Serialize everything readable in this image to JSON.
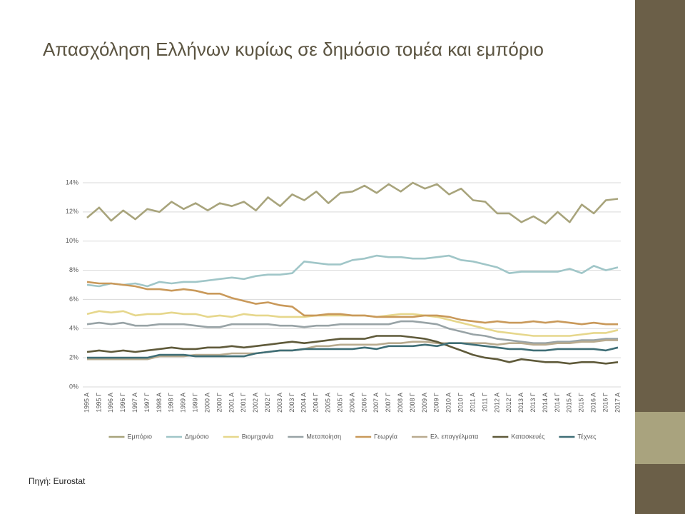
{
  "chart_data": {
    "type": "line",
    "title": "Απασχόληση Ελλήνων κυρίως σε δημόσιο τομέα και εμπόριο",
    "source": "Πηγή: Eurostat",
    "categories": [
      "1995 Α",
      "1995 Γ",
      "1996 Α",
      "1996 Γ",
      "1997 Α",
      "1997 Γ",
      "1998 Α",
      "1998 Γ",
      "1999 Α",
      "1999 Γ",
      "2000 Α",
      "2000 Γ",
      "2001 Α",
      "2001 Γ",
      "2002 Α",
      "2002 Γ",
      "2003 Α",
      "2003 Γ",
      "2004 Α",
      "2004 Γ",
      "2005 Α",
      "2005 Γ",
      "2006 Α",
      "2006 Γ",
      "2007 Α",
      "2007 Γ",
      "2008 Α",
      "2008 Γ",
      "2009 Α",
      "2009 Γ",
      "2010 Α",
      "2010 Γ",
      "2011 Α",
      "2011 Γ",
      "2012 Α",
      "2012 Γ",
      "2013 Α",
      "2013 Γ",
      "2014 Α",
      "2014 Γ",
      "2015 Α",
      "2015 Γ",
      "2016 Α",
      "2016 Γ",
      "2017 Α"
    ],
    "series": [
      {
        "name": "Εμπόριο",
        "color": "#a8a47c",
        "values": [
          11.6,
          12.3,
          11.4,
          12.1,
          11.5,
          12.2,
          12.0,
          12.7,
          12.2,
          12.6,
          12.1,
          12.6,
          12.4,
          12.7,
          12.1,
          13.0,
          12.4,
          13.2,
          12.8,
          13.4,
          12.6,
          13.3,
          13.4,
          13.8,
          13.3,
          13.9,
          13.4,
          14.0,
          13.6,
          13.9,
          13.2,
          13.6,
          12.8,
          12.7,
          11.9,
          11.9,
          11.3,
          11.7,
          11.2,
          12.0,
          11.3,
          12.5,
          11.9,
          12.8,
          12.9
        ]
      },
      {
        "name": "Δημόσιο",
        "color": "#a0c6c8",
        "values": [
          7.0,
          6.9,
          7.1,
          7.0,
          7.1,
          6.9,
          7.2,
          7.1,
          7.2,
          7.2,
          7.3,
          7.4,
          7.5,
          7.4,
          7.6,
          7.7,
          7.7,
          7.8,
          8.6,
          8.5,
          8.4,
          8.4,
          8.7,
          8.8,
          9.0,
          8.9,
          8.9,
          8.8,
          8.8,
          8.9,
          9.0,
          8.7,
          8.6,
          8.4,
          8.2,
          7.8,
          7.9,
          7.9,
          7.9,
          7.9,
          8.1,
          7.8,
          8.3,
          8.0,
          8.2
        ]
      },
      {
        "name": "Βιομηχανία",
        "color": "#e6d78c",
        "values": [
          5.0,
          5.2,
          5.1,
          5.2,
          4.9,
          5.0,
          5.0,
          5.1,
          5.0,
          5.0,
          4.8,
          4.9,
          4.8,
          5.0,
          4.9,
          4.9,
          4.8,
          4.8,
          4.8,
          4.9,
          4.9,
          4.9,
          4.9,
          4.9,
          4.8,
          4.9,
          5.0,
          5.0,
          4.9,
          4.8,
          4.6,
          4.4,
          4.2,
          4.0,
          3.8,
          3.7,
          3.6,
          3.5,
          3.5,
          3.5,
          3.5,
          3.6,
          3.7,
          3.7,
          3.9
        ]
      },
      {
        "name": "Μεταποίηση",
        "color": "#98a3a6",
        "values": [
          4.3,
          4.4,
          4.3,
          4.4,
          4.2,
          4.2,
          4.3,
          4.3,
          4.3,
          4.2,
          4.1,
          4.1,
          4.3,
          4.3,
          4.3,
          4.3,
          4.2,
          4.2,
          4.1,
          4.2,
          4.2,
          4.3,
          4.3,
          4.3,
          4.3,
          4.3,
          4.5,
          4.5,
          4.4,
          4.3,
          4.0,
          3.8,
          3.6,
          3.5,
          3.3,
          3.2,
          3.1,
          3.0,
          3.0,
          3.1,
          3.1,
          3.2,
          3.2,
          3.3,
          3.3
        ]
      },
      {
        "name": "Γεωργία",
        "color": "#c9995a",
        "values": [
          7.2,
          7.1,
          7.1,
          7.0,
          6.9,
          6.7,
          6.7,
          6.6,
          6.7,
          6.6,
          6.4,
          6.4,
          6.1,
          5.9,
          5.7,
          5.8,
          5.6,
          5.5,
          4.9,
          4.9,
          5.0,
          5.0,
          4.9,
          4.9,
          4.8,
          4.8,
          4.8,
          4.8,
          4.9,
          4.9,
          4.8,
          4.6,
          4.5,
          4.4,
          4.5,
          4.4,
          4.4,
          4.5,
          4.4,
          4.5,
          4.4,
          4.3,
          4.4,
          4.3,
          4.3
        ]
      },
      {
        "name": "Ελ. επαγγέλματα",
        "color": "#b9ab8f",
        "values": [
          1.9,
          1.9,
          1.9,
          1.9,
          1.9,
          1.9,
          2.1,
          2.1,
          2.1,
          2.2,
          2.2,
          2.2,
          2.3,
          2.3,
          2.3,
          2.4,
          2.5,
          2.5,
          2.6,
          2.8,
          2.8,
          2.9,
          2.9,
          2.9,
          2.9,
          3.0,
          3.0,
          3.1,
          3.1,
          3.0,
          3.0,
          3.0,
          3.0,
          3.0,
          2.9,
          3.0,
          3.0,
          2.9,
          2.9,
          3.0,
          3.0,
          3.1,
          3.1,
          3.2,
          3.2
        ]
      },
      {
        "name": "Κατασκευές",
        "color": "#5f5a3a",
        "values": [
          2.4,
          2.5,
          2.4,
          2.5,
          2.4,
          2.5,
          2.6,
          2.7,
          2.6,
          2.6,
          2.7,
          2.7,
          2.8,
          2.7,
          2.8,
          2.9,
          3.0,
          3.1,
          3.0,
          3.1,
          3.2,
          3.3,
          3.3,
          3.3,
          3.5,
          3.5,
          3.5,
          3.4,
          3.3,
          3.1,
          2.8,
          2.5,
          2.2,
          2.0,
          1.9,
          1.7,
          1.9,
          1.8,
          1.7,
          1.7,
          1.6,
          1.7,
          1.7,
          1.6,
          1.7
        ]
      },
      {
        "name": "Τέχνες",
        "color": "#3f6e76",
        "values": [
          2.0,
          2.0,
          2.0,
          2.0,
          2.0,
          2.0,
          2.2,
          2.2,
          2.2,
          2.1,
          2.1,
          2.1,
          2.1,
          2.1,
          2.3,
          2.4,
          2.5,
          2.5,
          2.6,
          2.6,
          2.6,
          2.6,
          2.6,
          2.7,
          2.6,
          2.8,
          2.8,
          2.8,
          2.9,
          2.8,
          3.0,
          3.0,
          2.9,
          2.8,
          2.7,
          2.6,
          2.6,
          2.5,
          2.5,
          2.6,
          2.6,
          2.6,
          2.6,
          2.5,
          2.7
        ]
      }
    ],
    "ylim": [
      0,
      14
    ],
    "yticks": [
      {
        "value": 0,
        "label": "0%"
      },
      {
        "value": 2,
        "label": "2%"
      },
      {
        "value": 4,
        "label": "4%"
      },
      {
        "value": 6,
        "label": "6%"
      },
      {
        "value": 8,
        "label": "8%"
      },
      {
        "value": 10,
        "label": "10%"
      },
      {
        "value": 12,
        "label": "12%"
      },
      {
        "value": 14,
        "label": "14%"
      }
    ],
    "grid": true,
    "legend": "bottom"
  }
}
